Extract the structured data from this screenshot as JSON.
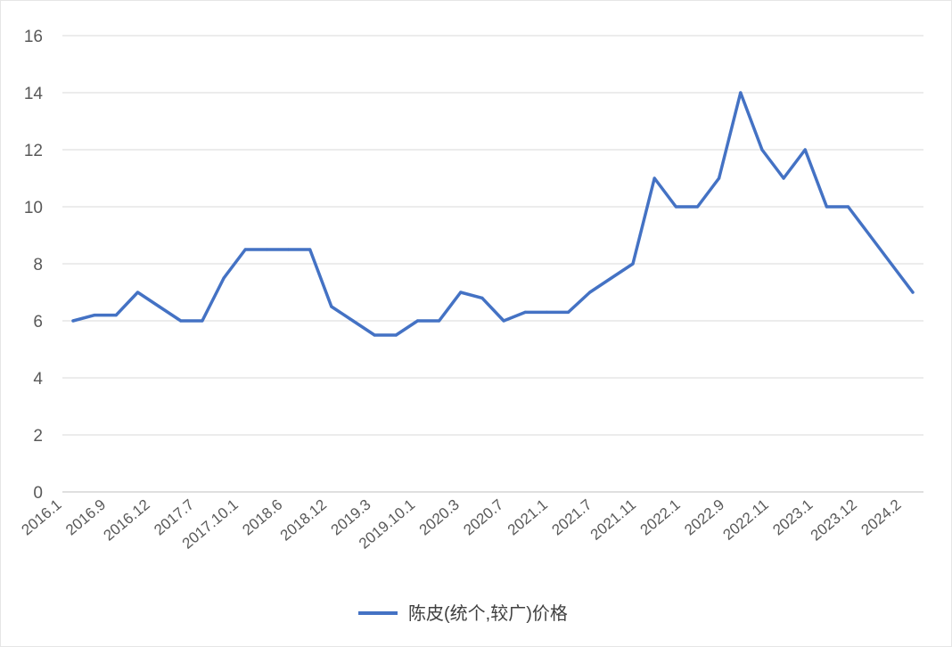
{
  "chart_data": {
    "type": "line",
    "title": "",
    "xlabel": "",
    "ylabel": "",
    "ylim": [
      0,
      16
    ],
    "y_ticks": [
      0,
      2,
      4,
      6,
      8,
      10,
      12,
      14,
      16
    ],
    "grid": true,
    "legend_position": "bottom",
    "x_tick_labels": [
      "2016.1",
      "2016.9",
      "2016.12",
      "2017.7",
      "2017.10.1",
      "2018.6",
      "2018.12",
      "2019.3",
      "2019.10.1",
      "2020.3",
      "2020.7",
      "2021.1",
      "2021.7",
      "2021.11",
      "2022.1",
      "2022.9",
      "2022.11",
      "2023.1",
      "2023.12",
      "2024.2"
    ],
    "series": [
      {
        "name": "陈皮(统个,较广)价格",
        "color": "#4472c4",
        "values": [
          6.0,
          6.2,
          6.2,
          7.0,
          6.5,
          6.0,
          6.0,
          7.5,
          8.5,
          8.5,
          8.5,
          8.5,
          6.5,
          6.0,
          5.5,
          5.5,
          6.0,
          6.0,
          7.0,
          6.8,
          6.0,
          6.3,
          6.3,
          6.3,
          7.0,
          7.5,
          8.0,
          11.0,
          10.0,
          10.0,
          11.0,
          14.0,
          12.0,
          11.0,
          12.0,
          10.0,
          10.0,
          9.0,
          8.0,
          7.0
        ]
      }
    ]
  }
}
